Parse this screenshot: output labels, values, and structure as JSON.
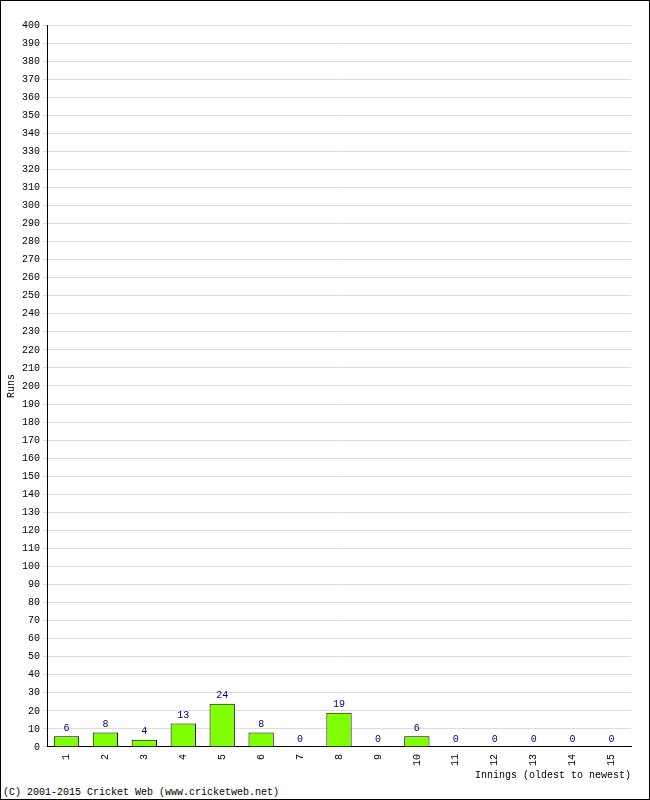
{
  "chart_data": {
    "type": "bar",
    "xlabel": "Innings (oldest to newest)",
    "ylabel": "Runs",
    "annotations": [
      "(C) 2001-2015 Cricket Web (www.cricketweb.net)"
    ],
    "categories": [
      "1",
      "2",
      "3",
      "4",
      "5",
      "6",
      "7",
      "8",
      "9",
      "10",
      "11",
      "12",
      "13",
      "14",
      "15"
    ],
    "values": [
      6,
      8,
      4,
      13,
      24,
      8,
      0,
      19,
      0,
      6,
      0,
      0,
      0,
      0,
      0
    ],
    "color": "#80ff00",
    "ylim": [
      0,
      400
    ],
    "yticks": [
      0,
      10,
      20,
      30,
      40,
      50,
      60,
      70,
      80,
      90,
      100,
      110,
      120,
      130,
      140,
      150,
      160,
      170,
      180,
      190,
      200,
      210,
      220,
      230,
      240,
      250,
      260,
      270,
      280,
      290,
      300,
      310,
      320,
      330,
      340,
      350,
      360,
      370,
      380,
      390,
      400
    ],
    "grid": true,
    "data_labels": true
  }
}
